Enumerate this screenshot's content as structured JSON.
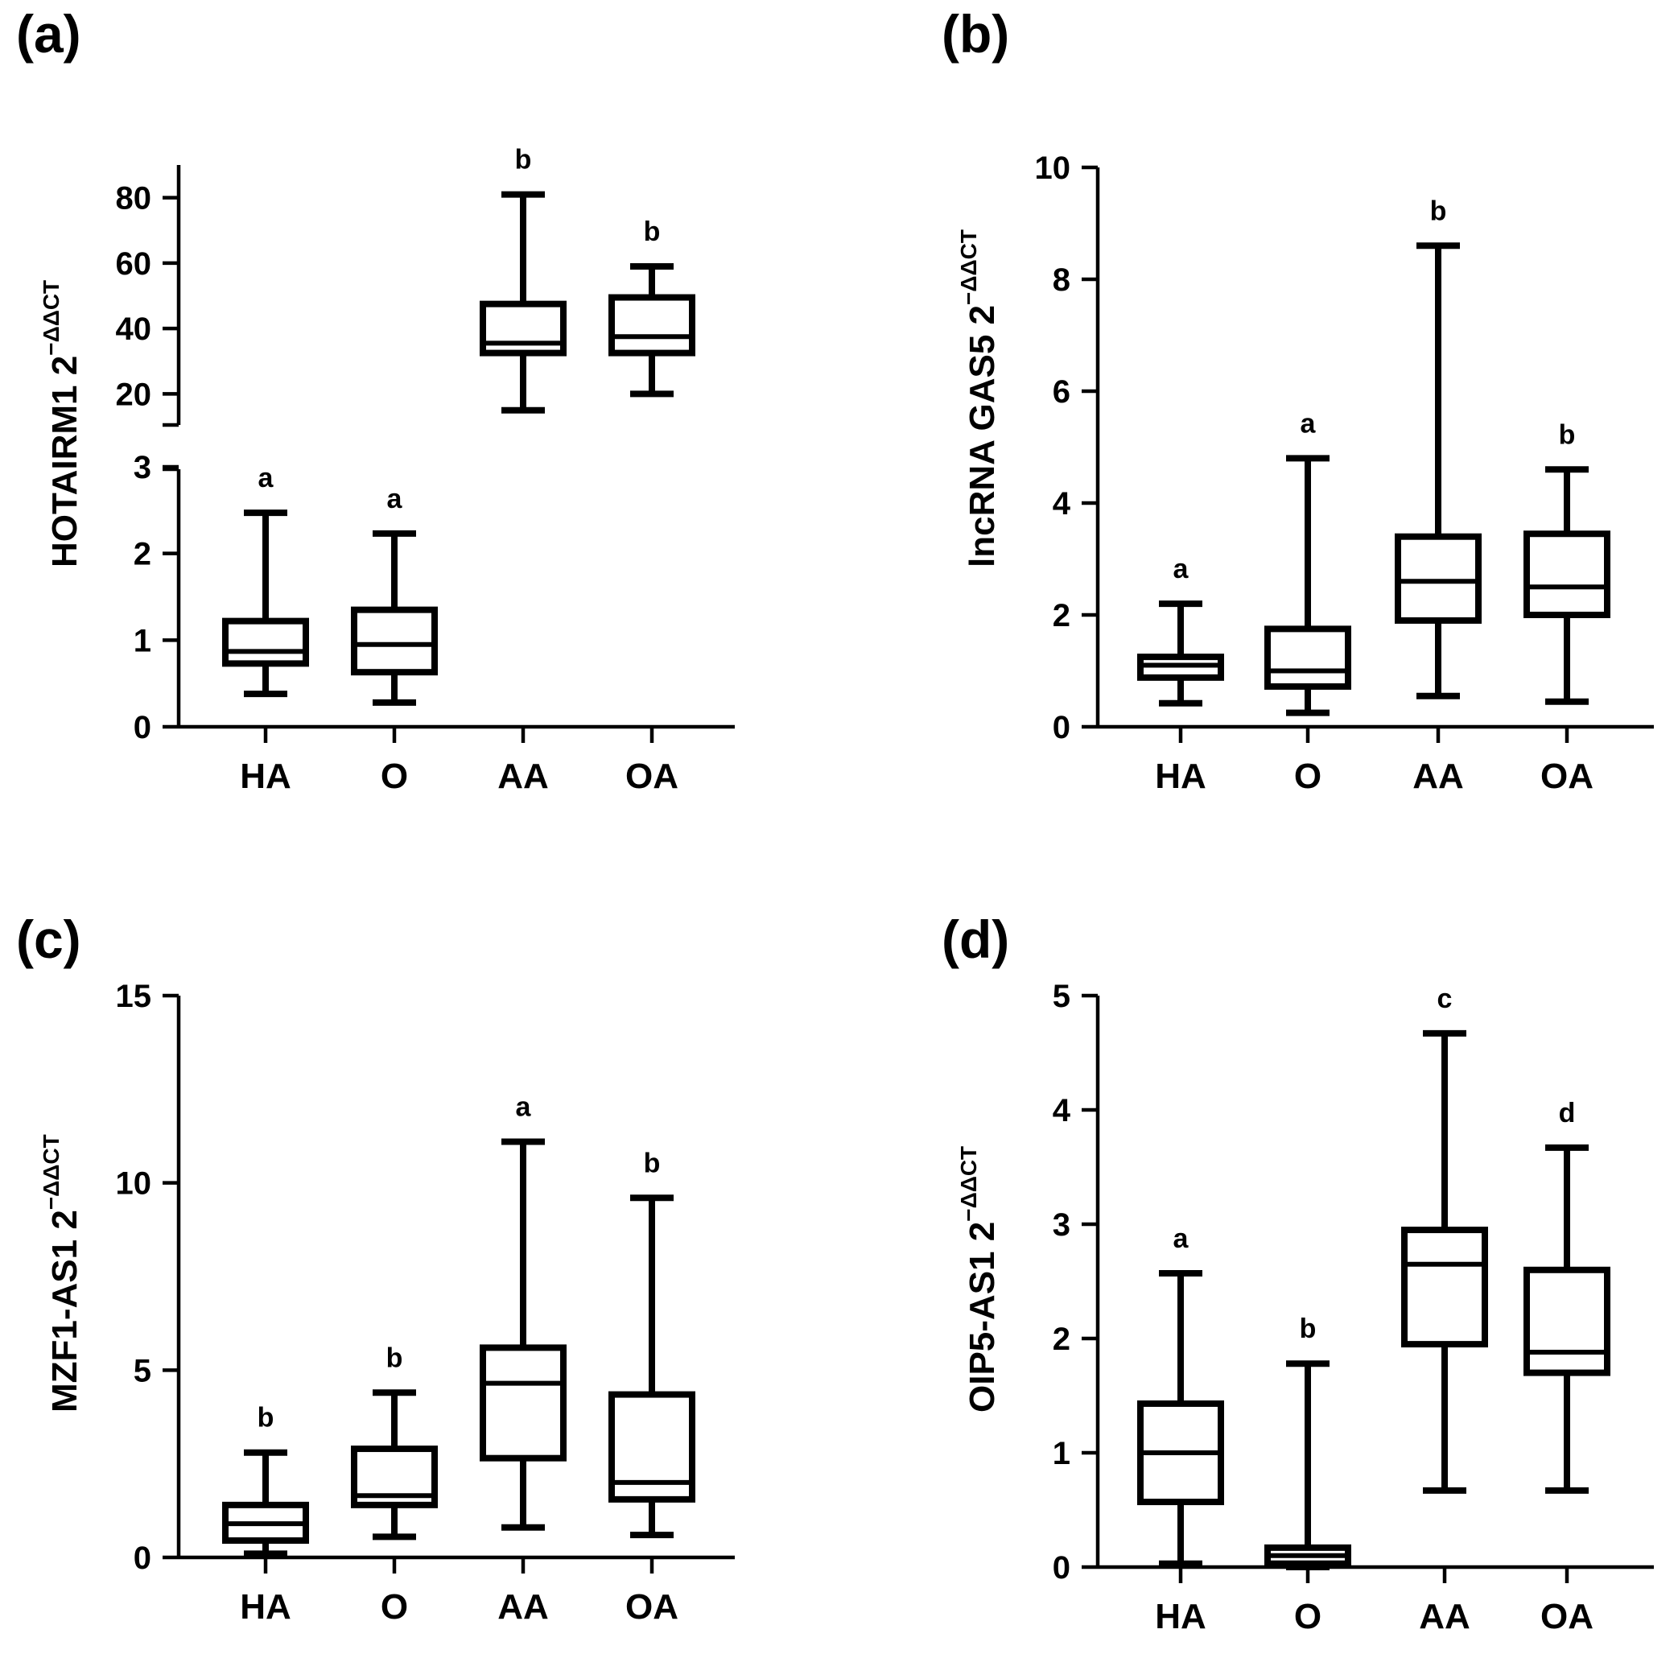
{
  "chart_data": [
    {
      "type": "box",
      "panel_label": "(a)",
      "ylabel": "HOTAIRM1 2",
      "ylabel_sup": "−ΔΔCT",
      "categories": [
        "HA",
        "O",
        "AA",
        "OA"
      ],
      "axis_break": {
        "lower_range": [
          0,
          3
        ],
        "lower_ticks": [
          0,
          1,
          2,
          3
        ],
        "upper_range": [
          10,
          90
        ],
        "upper_ticks": [
          20,
          40,
          60,
          80
        ]
      },
      "boxes": [
        {
          "min": 0.38,
          "q1": 0.73,
          "median": 0.87,
          "q3": 1.22,
          "max": 2.47
        },
        {
          "min": 0.28,
          "q1": 0.63,
          "median": 0.95,
          "q3": 1.35,
          "max": 2.23
        },
        {
          "min": 15,
          "q1": 32.5,
          "median": 35.5,
          "q3": 47.5,
          "max": 81
        },
        {
          "min": 20,
          "q1": 32.5,
          "median": 37.5,
          "q3": 49.5,
          "max": 59
        }
      ],
      "significance": [
        "a",
        "a",
        "b",
        "b"
      ]
    },
    {
      "type": "box",
      "panel_label": "(b)",
      "ylabel": "lncRNA GAS5 2",
      "ylabel_sup": "−ΔΔCT",
      "categories": [
        "HA",
        "O",
        "AA",
        "OA"
      ],
      "ylim": [
        0,
        10
      ],
      "yticks": [
        0,
        2,
        4,
        6,
        8,
        10
      ],
      "boxes": [
        {
          "min": 0.42,
          "q1": 0.88,
          "median": 1.1,
          "q3": 1.25,
          "max": 2.2
        },
        {
          "min": 0.25,
          "q1": 0.72,
          "median": 1.0,
          "q3": 1.75,
          "max": 4.8
        },
        {
          "min": 0.55,
          "q1": 1.9,
          "median": 2.6,
          "q3": 3.4,
          "max": 8.6
        },
        {
          "min": 0.45,
          "q1": 2.0,
          "median": 2.5,
          "q3": 3.45,
          "max": 4.6
        }
      ],
      "significance": [
        "a",
        "a",
        "b",
        "b"
      ]
    },
    {
      "type": "box",
      "panel_label": "(c)",
      "ylabel": "MZF1-AS1 2",
      "ylabel_sup": "−ΔΔCT",
      "categories": [
        "HA",
        "O",
        "AA",
        "OA"
      ],
      "ylim": [
        0,
        15
      ],
      "yticks": [
        0,
        5,
        10,
        15
      ],
      "boxes": [
        {
          "min": 0.1,
          "q1": 0.45,
          "median": 0.9,
          "q3": 1.4,
          "max": 2.8
        },
        {
          "min": 0.55,
          "q1": 1.4,
          "median": 1.65,
          "q3": 2.9,
          "max": 4.4
        },
        {
          "min": 0.8,
          "q1": 2.65,
          "median": 4.65,
          "q3": 5.6,
          "max": 11.1
        },
        {
          "min": 0.6,
          "q1": 1.55,
          "median": 2.0,
          "q3": 4.35,
          "max": 9.6
        }
      ],
      "significance": [
        "b",
        "b",
        "a",
        "b"
      ]
    },
    {
      "type": "box",
      "panel_label": "(d)",
      "ylabel": "OIP5-AS1 2",
      "ylabel_sup": "−ΔΔCT",
      "categories": [
        "HA",
        "O",
        "AA",
        "OA"
      ],
      "ylim": [
        0,
        5
      ],
      "yticks": [
        0,
        1,
        2,
        3,
        4,
        5
      ],
      "boxes": [
        {
          "min": 0.03,
          "q1": 0.57,
          "median": 1.0,
          "q3": 1.43,
          "max": 2.57
        },
        {
          "min": 0.0,
          "q1": 0.03,
          "median": 0.1,
          "q3": 0.17,
          "max": 1.78
        },
        {
          "min": 0.67,
          "q1": 1.95,
          "median": 2.65,
          "q3": 2.95,
          "max": 4.67
        },
        {
          "min": 0.67,
          "q1": 1.7,
          "median": 1.88,
          "q3": 2.6,
          "max": 3.67
        }
      ],
      "significance": [
        "a",
        "b",
        "c",
        "d"
      ]
    }
  ]
}
